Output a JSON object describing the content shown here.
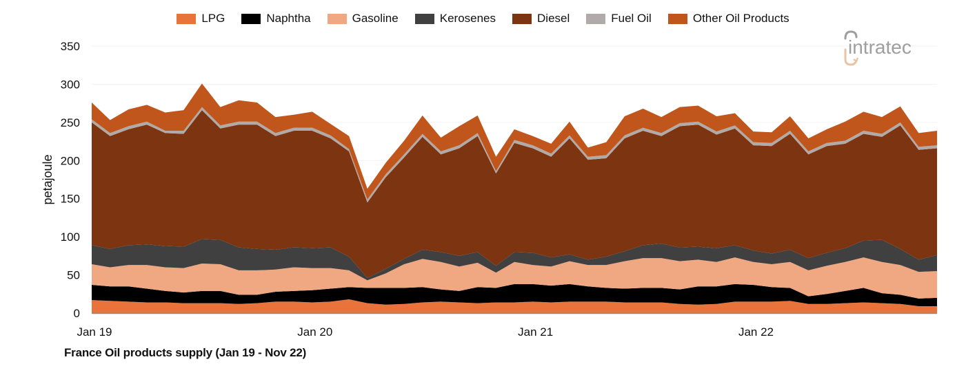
{
  "chart_data": {
    "type": "area",
    "stacked": true,
    "title": "France Oil products supply (Jan 19 - Nov 22)",
    "xlabel": "",
    "ylabel": "petajoule",
    "ylim": [
      0,
      350
    ],
    "yticks": [
      0,
      50,
      100,
      150,
      200,
      250,
      300,
      350
    ],
    "xtick_labels": [
      {
        "label": "Jan 19",
        "index": 0
      },
      {
        "label": "Jan 20",
        "index": 12
      },
      {
        "label": "Jan 21",
        "index": 24
      },
      {
        "label": "Jan 22",
        "index": 36
      }
    ],
    "grid": "horizontal",
    "legend_position": "top",
    "x": [
      "Jan 19",
      "Feb 19",
      "Mar 19",
      "Apr 19",
      "May 19",
      "Jun 19",
      "Jul 19",
      "Aug 19",
      "Sep 19",
      "Oct 19",
      "Nov 19",
      "Dec 19",
      "Jan 20",
      "Feb 20",
      "Mar 20",
      "Apr 20",
      "May 20",
      "Jun 20",
      "Jul 20",
      "Aug 20",
      "Sep 20",
      "Oct 20",
      "Nov 20",
      "Dec 20",
      "Jan 21",
      "Feb 21",
      "Mar 21",
      "Apr 21",
      "May 21",
      "Jun 21",
      "Jul 21",
      "Aug 21",
      "Sep 21",
      "Oct 21",
      "Nov 21",
      "Dec 21",
      "Jan 22",
      "Feb 22",
      "Mar 22",
      "Apr 22",
      "May 22",
      "Jun 22",
      "Jul 22",
      "Aug 22",
      "Sep 22",
      "Oct 22",
      "Nov 22"
    ],
    "series": [
      {
        "name": "LPG",
        "color": "#E8743B",
        "values": [
          17,
          16,
          15,
          14,
          14,
          13,
          13,
          13,
          12,
          13,
          15,
          15,
          14,
          15,
          18,
          13,
          11,
          12,
          14,
          15,
          14,
          13,
          14,
          14,
          15,
          14,
          15,
          15,
          15,
          14,
          14,
          14,
          12,
          11,
          12,
          15,
          15,
          15,
          16,
          12,
          12,
          13,
          14,
          13,
          12,
          9,
          9
        ]
      },
      {
        "name": "Naphtha",
        "color": "#000000",
        "values": [
          20,
          19,
          20,
          18,
          15,
          14,
          16,
          16,
          12,
          11,
          13,
          14,
          16,
          17,
          16,
          20,
          22,
          21,
          20,
          16,
          15,
          21,
          19,
          24,
          23,
          22,
          23,
          20,
          18,
          18,
          19,
          19,
          19,
          24,
          23,
          23,
          22,
          19,
          17,
          10,
          13,
          16,
          19,
          13,
          12,
          10,
          11
        ]
      },
      {
        "name": "Gasoline",
        "color": "#F0A882",
        "values": [
          27,
          25,
          28,
          31,
          31,
          32,
          36,
          35,
          32,
          32,
          29,
          31,
          29,
          27,
          22,
          10,
          19,
          31,
          37,
          36,
          32,
          32,
          20,
          29,
          25,
          25,
          30,
          28,
          30,
          36,
          39,
          39,
          37,
          35,
          32,
          35,
          30,
          30,
          34,
          34,
          37,
          38,
          40,
          41,
          39,
          35,
          35
        ]
      },
      {
        "name": "Kerosenes",
        "color": "#404040",
        "values": [
          25,
          24,
          26,
          27,
          28,
          28,
          32,
          32,
          30,
          28,
          26,
          26,
          26,
          27,
          18,
          3,
          6,
          7,
          12,
          13,
          14,
          14,
          9,
          13,
          16,
          12,
          9,
          7,
          11,
          13,
          17,
          19,
          18,
          17,
          18,
          16,
          15,
          14,
          16,
          16,
          17,
          18,
          22,
          29,
          21,
          16,
          21
        ]
      },
      {
        "name": "Diesel",
        "color": "#7D3410",
        "values": [
          161,
          148,
          152,
          157,
          148,
          148,
          169,
          146,
          161,
          163,
          149,
          153,
          154,
          143,
          138,
          99,
          120,
          133,
          148,
          128,
          141,
          152,
          121,
          143,
          137,
          132,
          152,
          131,
          129,
          148,
          150,
          141,
          159,
          160,
          149,
          153,
          138,
          141,
          152,
          136,
          140,
          137,
          140,
          135,
          162,
          144,
          140
        ]
      },
      {
        "name": "Fuel Oil",
        "color": "#B0ABA8",
        "values": [
          4,
          4,
          4,
          4,
          3,
          4,
          4,
          4,
          4,
          4,
          4,
          4,
          4,
          4,
          3,
          4,
          4,
          4,
          4,
          4,
          4,
          4,
          3,
          4,
          4,
          4,
          4,
          4,
          4,
          4,
          4,
          4,
          4,
          4,
          4,
          4,
          4,
          4,
          4,
          4,
          4,
          4,
          4,
          4,
          4,
          4,
          4
        ]
      },
      {
        "name": "Other Oil Products",
        "color": "#C0561B",
        "values": [
          22,
          17,
          22,
          22,
          24,
          27,
          31,
          24,
          28,
          25,
          21,
          17,
          21,
          15,
          17,
          14,
          15,
          18,
          24,
          18,
          25,
          23,
          19,
          14,
          12,
          13,
          18,
          12,
          17,
          25,
          25,
          21,
          21,
          21,
          20,
          16,
          14,
          14,
          19,
          17,
          18,
          25,
          25,
          22,
          21,
          18,
          19
        ]
      }
    ]
  },
  "legend": {
    "items": [
      {
        "label": "LPG",
        "color": "#E8743B"
      },
      {
        "label": "Naphtha",
        "color": "#000000"
      },
      {
        "label": "Gasoline",
        "color": "#F0A882"
      },
      {
        "label": "Kerosenes",
        "color": "#404040"
      },
      {
        "label": "Diesel",
        "color": "#7D3410"
      },
      {
        "label": "Fuel Oil",
        "color": "#B0ABA8"
      },
      {
        "label": "Other Oil Products",
        "color": "#C0561B"
      }
    ]
  },
  "axis": {
    "y_title": "petajoule",
    "y_ticks": [
      "0",
      "50",
      "100",
      "150",
      "200",
      "250",
      "300",
      "350"
    ],
    "x_ticks": [
      "Jan 19",
      "Jan 20",
      "Jan 21",
      "Jan 22"
    ]
  },
  "caption": "France Oil products supply (Jan 19 - Nov 22)",
  "logo": {
    "text": "intratec",
    "color_text": "#9E9E9E",
    "color_accent": "#E8C4A3"
  }
}
